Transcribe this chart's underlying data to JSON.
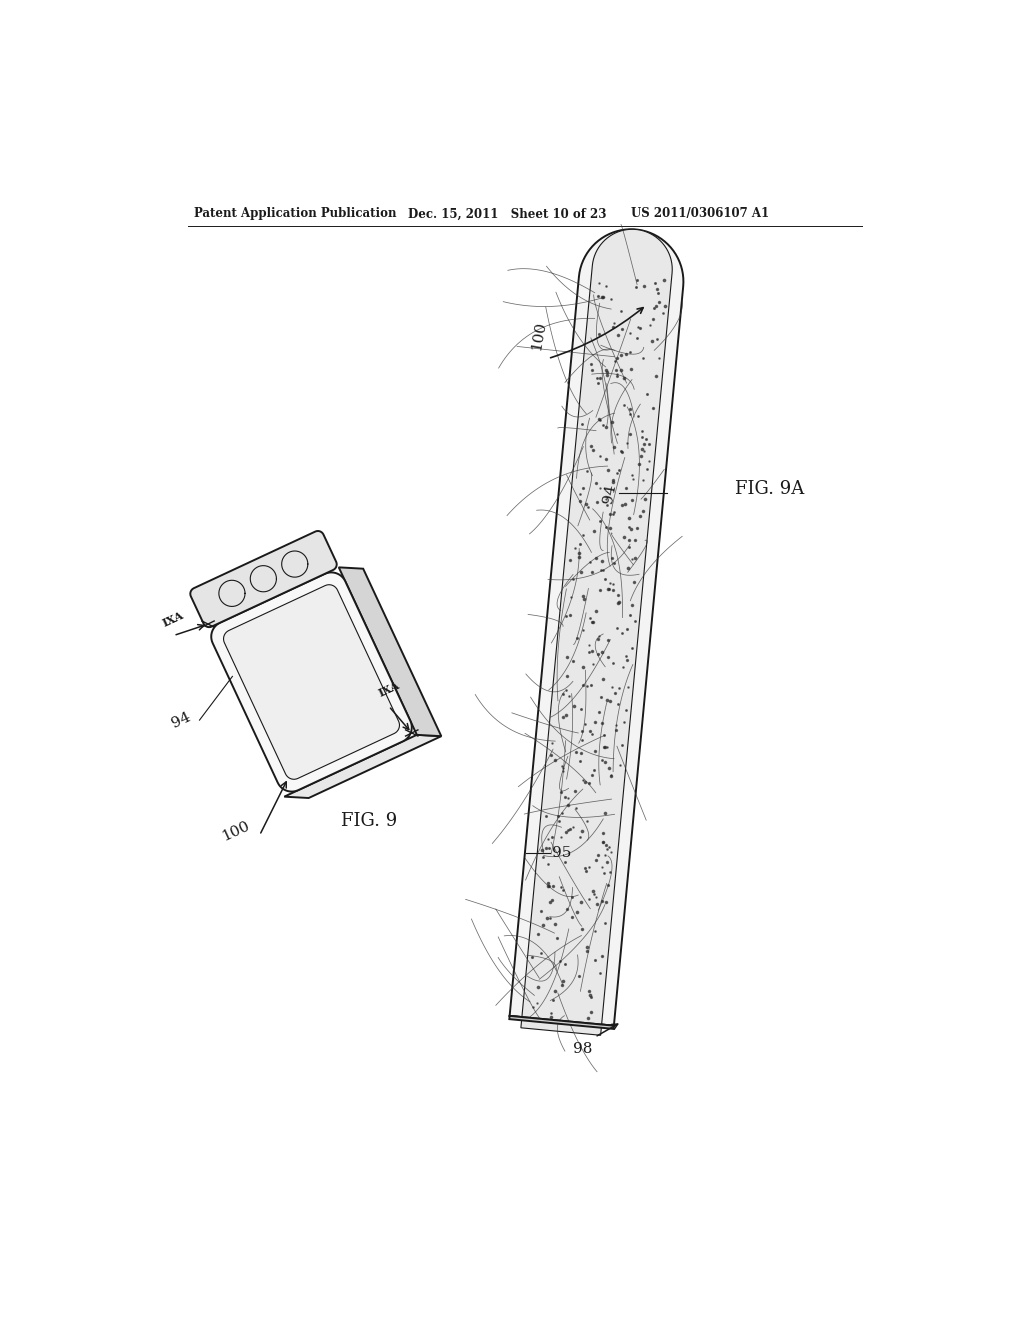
{
  "bg_color": "#ffffff",
  "header_left": "Patent Application Publication",
  "header_mid": "Dec. 15, 2011   Sheet 10 of 23",
  "header_right": "US 2011/0306107 A1",
  "fig9_label": "FIG. 9",
  "fig9a_label": "FIG. 9A",
  "ref_100_fig9": "100",
  "ref_94_fig9": "94",
  "ref_IXA": "IXA",
  "ref_100_fig9a": "100",
  "ref_94_fig9a": "94",
  "ref_95": "95",
  "ref_98": "98",
  "lw_main": 1.4,
  "lw_thin": 0.8,
  "color_main": "#1a1a1a"
}
